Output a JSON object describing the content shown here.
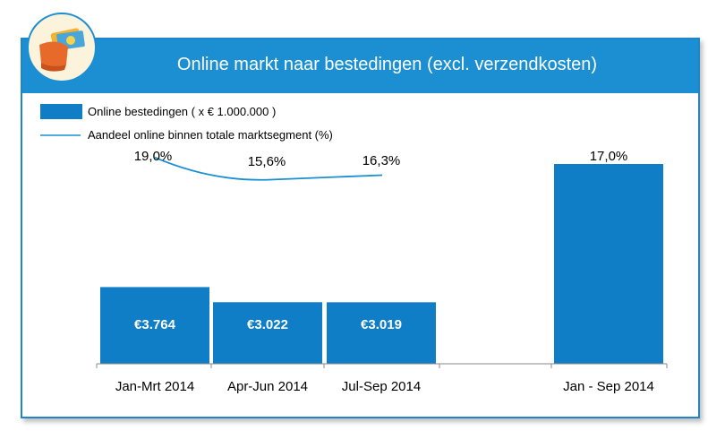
{
  "title": "Online markt naar bestedingen (excl. verzendkosten)",
  "logo_icon": "wallet-money-icon",
  "colors": {
    "header": "#1b8fd2",
    "bar": "#0f7ec6",
    "line": "#1b8fd2"
  },
  "chart_data": {
    "type": "bar",
    "categories": [
      "Jan-Mrt 2014",
      "Apr-Jun 2014",
      "Jul-Sep 2014",
      "Jan - Sep 2014"
    ],
    "series": [
      {
        "name": "Online bestedingen ( x € 1.000.000 )",
        "type": "bar",
        "values": [
          3764,
          3022,
          3019,
          9805
        ],
        "data_labels": [
          "€3.764",
          "€3.022",
          "€3.019",
          ""
        ]
      },
      {
        "name": "Aandeel online binnen totale marktsegment (%)",
        "type": "line",
        "values": [
          19.0,
          15.6,
          16.3,
          17.0
        ],
        "data_labels": [
          "19,0%",
          "15,6%",
          "16,3%",
          "17,0%"
        ]
      }
    ],
    "legend": "top-left",
    "grid": false
  }
}
